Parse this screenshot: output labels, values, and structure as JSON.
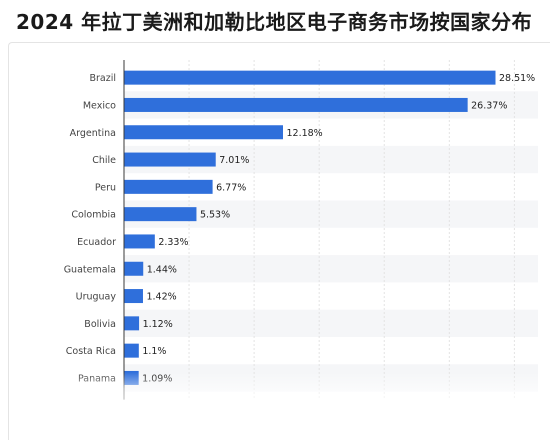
{
  "page": {
    "title": "2024 年拉丁美洲和加勒比地区电子商务市场按国家分布"
  },
  "chart_data": {
    "type": "bar",
    "orientation": "horizontal",
    "title": "2024 年拉丁美洲和加勒比地区电子商务市场按国家分布",
    "xlabel": "",
    "ylabel": "",
    "xlim": [
      0,
      30
    ],
    "grid": true,
    "bar_color": "#2f6fdb",
    "categories": [
      "Brazil",
      "Mexico",
      "Argentina",
      "Chile",
      "Peru",
      "Colombia",
      "Ecuador",
      "Guatemala",
      "Uruguay",
      "Bolivia",
      "Costa Rica",
      "Panama"
    ],
    "values": [
      28.51,
      26.37,
      12.18,
      7.01,
      6.77,
      5.53,
      2.33,
      1.44,
      1.42,
      1.12,
      1.1,
      1.09
    ],
    "labels": [
      "28.51%",
      "26.37%",
      "12.18%",
      "7.01%",
      "6.77%",
      "5.53%",
      "2.33%",
      "1.44%",
      "1.42%",
      "1.12%",
      "1.1%",
      "1.09%"
    ]
  }
}
